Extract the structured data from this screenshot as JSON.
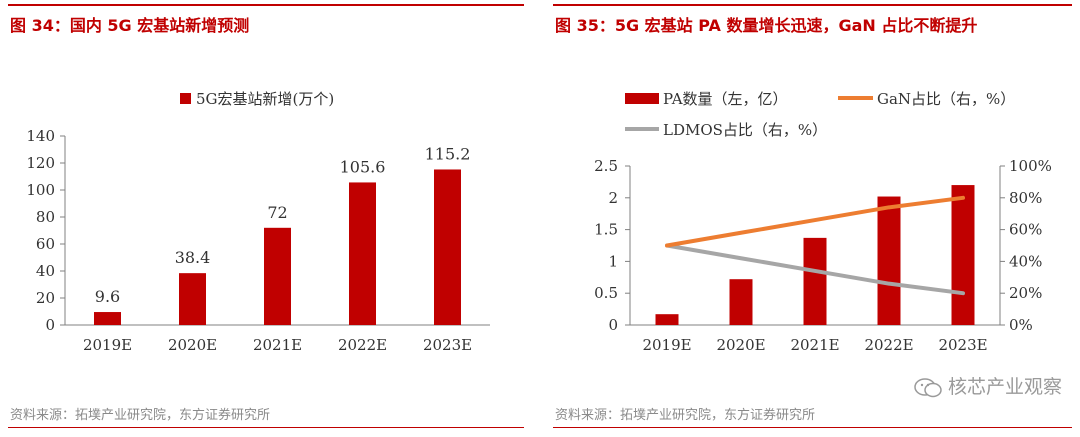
{
  "colors": {
    "accent": "#c00000",
    "bar": "#c00000",
    "gan_line": "#ed7d31",
    "ldmos_line": "#a6a6a6",
    "axis": "#808080"
  },
  "left": {
    "title": "图 34：国内 5G 宏基站新增预测",
    "source": "资料来源：拓墣产业研究院，东方证券研究所"
  },
  "right": {
    "title": "图 35：5G 宏基站 PA 数量增长迅速，GaN 占比不断提升",
    "source": "资料来源：拓墣产业研究院，东方证券研究所"
  },
  "watermark": {
    "text": "核芯产业观察",
    "icon": "wechat-icon"
  },
  "chart_data": [
    {
      "type": "bar",
      "categories": [
        "2019E",
        "2020E",
        "2021E",
        "2022E",
        "2023E"
      ],
      "series": [
        {
          "name": "5G宏基站新增(万个)",
          "values": [
            9.6,
            38.4,
            72,
            105.6,
            115.2
          ]
        }
      ],
      "data_labels": [
        "9.6",
        "38.4",
        "72",
        "105.6",
        "115.2"
      ],
      "ylim": [
        0,
        140
      ],
      "yticks": [
        "0",
        "20",
        "40",
        "60",
        "80",
        "100",
        "120",
        "140"
      ],
      "legend_position": "top-center",
      "grid": false
    },
    {
      "type": "bar",
      "categories": [
        "2019E",
        "2020E",
        "2021E",
        "2022E",
        "2023E"
      ],
      "series": [
        {
          "name": "PA数量（左，亿）",
          "type": "bar",
          "axis": "left",
          "values": [
            0.17,
            0.72,
            1.37,
            2.02,
            2.2
          ]
        },
        {
          "name": "GaN占比（右，%）",
          "type": "line",
          "axis": "right",
          "values": [
            50,
            58,
            66,
            74,
            80
          ]
        },
        {
          "name": "LDMOS占比（右，%）",
          "type": "line",
          "axis": "right",
          "values": [
            50,
            42,
            34,
            26,
            20
          ]
        }
      ],
      "ylim_left": [
        0,
        2.5
      ],
      "ylim_right": [
        0,
        100
      ],
      "yticks_left": [
        "0",
        "0.5",
        "1",
        "1.5",
        "2",
        "2.5"
      ],
      "yticks_right": [
        "0%",
        "20%",
        "40%",
        "60%",
        "80%",
        "100%"
      ],
      "legend_position": "top-left",
      "grid": false
    }
  ]
}
